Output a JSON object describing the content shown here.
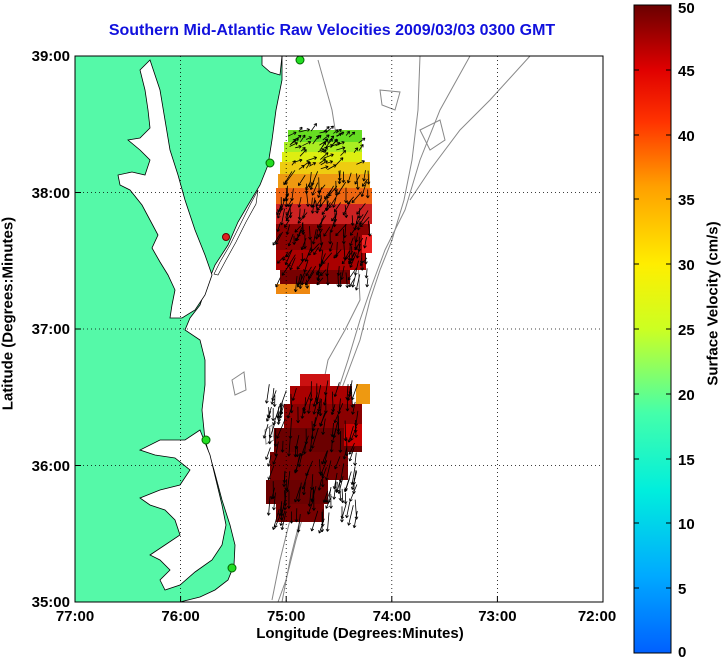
{
  "title": "Southern Mid-Atlantic Raw Velocities 2009/03/03 0300 GMT",
  "xlabel": "Longitude (Degrees:Minutes)",
  "ylabel": "Latitude (Degrees:Minutes)",
  "colorbar_label": "Surface Velocity (cm/s)",
  "x_ticks": [
    "77:00",
    "76:00",
    "75:00",
    "74:00",
    "73:00",
    "72:00"
  ],
  "y_ticks": [
    "39:00",
    "38:00",
    "37:00",
    "36:00",
    "35:00"
  ],
  "colorbar_ticks": [
    "50",
    "45",
    "40",
    "35",
    "30",
    "25",
    "20",
    "15",
    "10",
    "5",
    "0"
  ],
  "colors": {
    "land": "#55f9a8",
    "title": "#1111dd",
    "contour": "#888888"
  },
  "chart_data": {
    "type": "heatmap",
    "title": "Southern Mid-Atlantic Raw Velocities 2009/03/03 0300 GMT",
    "xlabel": "Longitude (Degrees:Minutes)",
    "ylabel": "Latitude (Degrees:Minutes)",
    "xlim": [
      -77.0,
      -72.0
    ],
    "ylim": [
      35.0,
      39.0
    ],
    "colorbar": {
      "label": "Surface Velocity (cm/s)",
      "range": [
        0,
        50
      ],
      "colormap": "jet"
    },
    "grid": true,
    "stations": [
      {
        "lon": -75.1,
        "lat": 38.98
      },
      {
        "lon": -75.3,
        "lat": 38.05
      },
      {
        "lon": -75.5,
        "lat": 37.7
      },
      {
        "lon": -75.75,
        "lat": 36.18
      },
      {
        "lon": -75.5,
        "lat": 35.25
      }
    ],
    "velocity_regions": [
      {
        "region": "north",
        "lon_range": [
          -75.1,
          -74.3
        ],
        "lat_range": [
          37.4,
          38.5
        ],
        "speed_range_cm_s": [
          20,
          50
        ]
      },
      {
        "region": "south",
        "lon_range": [
          -75.2,
          -74.3
        ],
        "lat_range": [
          35.6,
          36.6
        ],
        "speed_range_cm_s": [
          38,
          50
        ]
      }
    ]
  }
}
